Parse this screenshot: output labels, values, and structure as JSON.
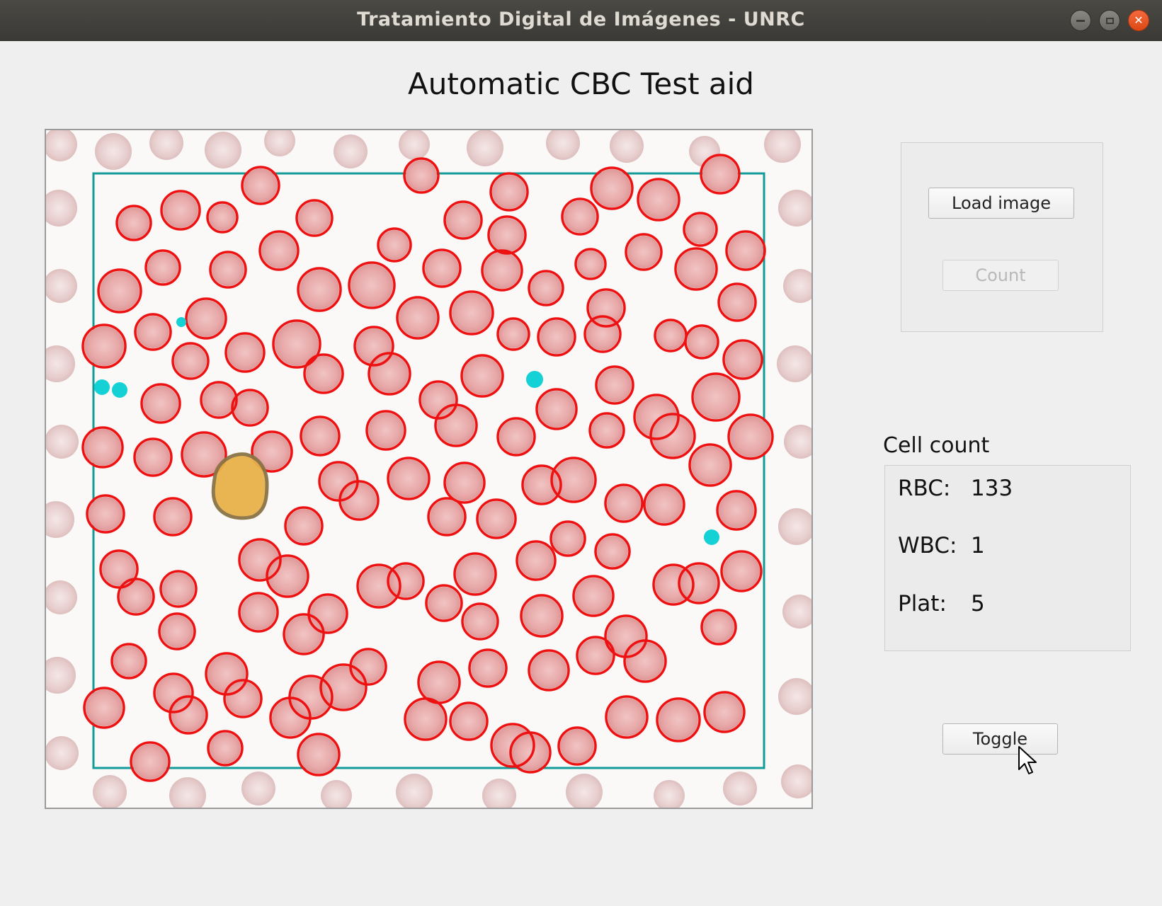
{
  "window": {
    "title": "Tratamiento Digital de Imágenes - UNRC"
  },
  "header": {
    "title": "Automatic CBC Test aid"
  },
  "controls": {
    "load_label": "Load image",
    "count_label": "Count",
    "toggle_label": "Toggle"
  },
  "cell_count": {
    "heading": "Cell count",
    "rbc_label": "RBC:",
    "rbc_value": "133",
    "wbc_label": "WBC:",
    "wbc_value": "1",
    "plat_label": "Plat:",
    "plat_value": "5"
  },
  "colors": {
    "rbc_outline": "#ee1111",
    "wbc_fill": "#e8b24a",
    "platelet": "#13d1d4",
    "roi": "#129b98"
  }
}
